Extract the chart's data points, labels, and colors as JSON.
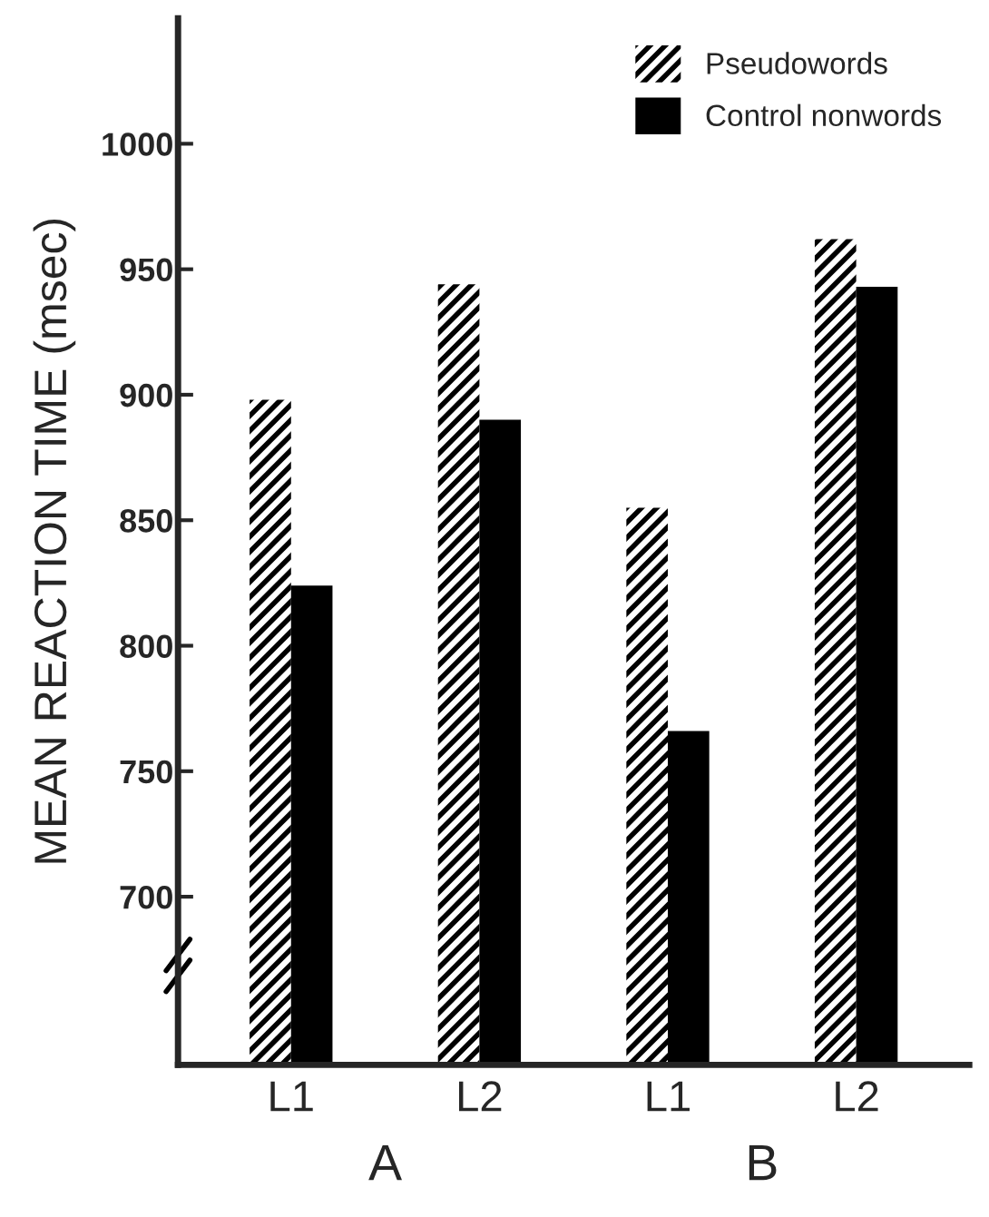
{
  "chart_data": {
    "type": "bar",
    "ylabel": "MEAN REACTION TIME (msec)",
    "categories": [
      "L1",
      "L2",
      "L1",
      "L2"
    ],
    "series": [
      {
        "name": "Pseudowords",
        "color": "#000000",
        "values": [
          898,
          944,
          855,
          962
        ]
      },
      {
        "name": "Control nonwords",
        "color": "#000000",
        "values": [
          824,
          890,
          766,
          943
        ]
      }
    ],
    "annotations": [
      "A",
      "B"
    ],
    "ylim": [
      633,
      1050
    ],
    "yticks": [
      700,
      750,
      800,
      850,
      900,
      950,
      1000
    ],
    "grid": false,
    "legend": "top right"
  }
}
